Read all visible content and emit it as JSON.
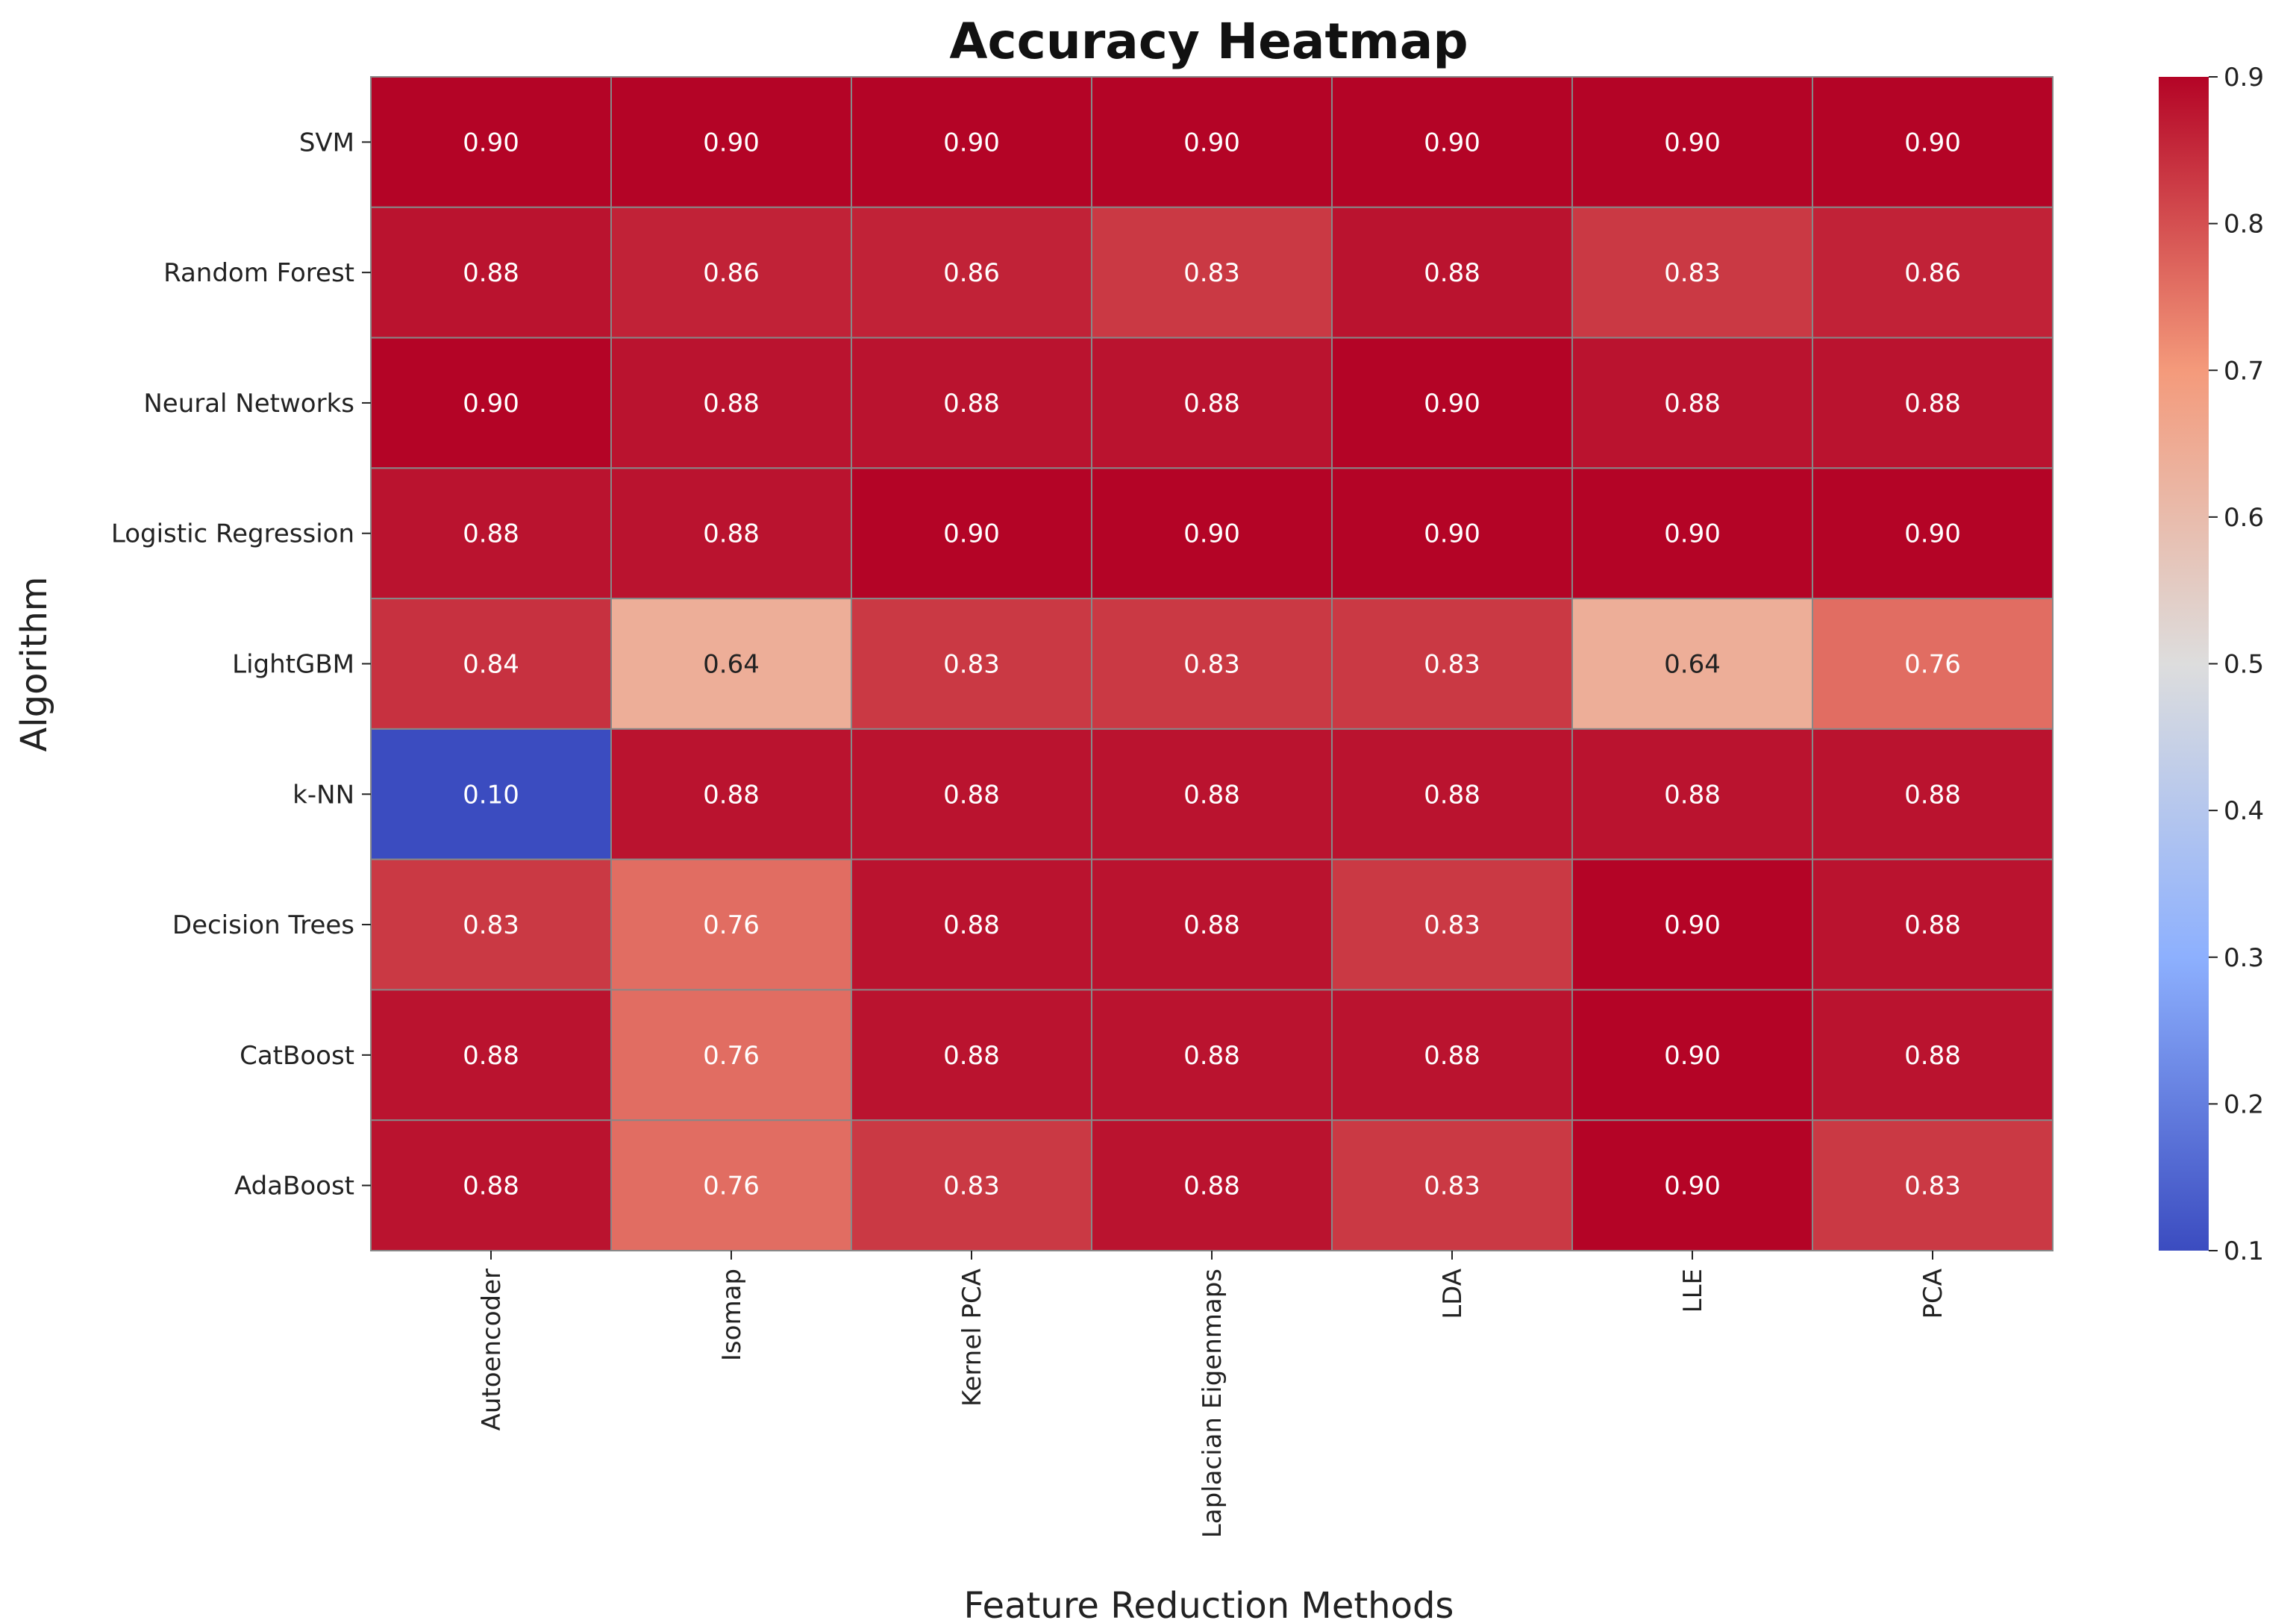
{
  "chart_data": {
    "type": "heatmap",
    "title": "Accuracy Heatmap",
    "xlabel": "Feature Reduction Methods",
    "ylabel": "Algorithm",
    "x_categories": [
      "Autoencoder",
      "Isomap",
      "Kernel PCA",
      "Laplacian Eigenmaps",
      "LDA",
      "LLE",
      "PCA"
    ],
    "y_categories": [
      "SVM",
      "Random Forest",
      "Neural Networks",
      "Logistic Regression",
      "LightGBM",
      "k-NN",
      "Decision Trees",
      "CatBoost",
      "AdaBoost"
    ],
    "values": [
      [
        0.9,
        0.9,
        0.9,
        0.9,
        0.9,
        0.9,
        0.9
      ],
      [
        0.88,
        0.86,
        0.86,
        0.83,
        0.88,
        0.83,
        0.86
      ],
      [
        0.9,
        0.88,
        0.88,
        0.88,
        0.9,
        0.88,
        0.88
      ],
      [
        0.88,
        0.88,
        0.9,
        0.9,
        0.9,
        0.9,
        0.9
      ],
      [
        0.84,
        0.64,
        0.83,
        0.83,
        0.83,
        0.64,
        0.76
      ],
      [
        0.1,
        0.88,
        0.88,
        0.88,
        0.88,
        0.88,
        0.88
      ],
      [
        0.83,
        0.76,
        0.88,
        0.88,
        0.83,
        0.9,
        0.88
      ],
      [
        0.88,
        0.76,
        0.88,
        0.88,
        0.88,
        0.9,
        0.88
      ],
      [
        0.88,
        0.76,
        0.83,
        0.88,
        0.83,
        0.9,
        0.83
      ]
    ],
    "value_format": "0.00",
    "colormap": "coolwarm",
    "vmin": 0.1,
    "vmax": 0.9,
    "colorbar_ticks": [
      "0.9",
      "0.8",
      "0.7",
      "0.6",
      "0.5",
      "0.4",
      "0.3",
      "0.2",
      "0.1"
    ],
    "colorbar_tick_values": [
      0.9,
      0.8,
      0.7,
      0.6,
      0.5,
      0.4,
      0.3,
      0.2,
      0.1
    ],
    "colorbar_placement": "right",
    "colors": {
      "low": "#3b4cc0",
      "mid": "#dddddd",
      "high": "#b40426",
      "cell_border": "#888888"
    }
  }
}
